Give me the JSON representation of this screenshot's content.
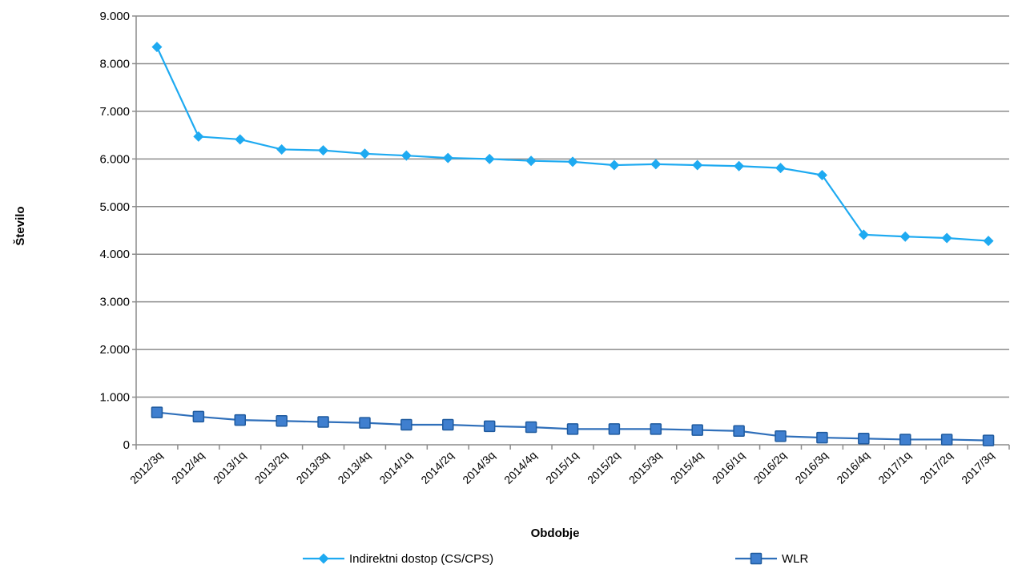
{
  "chart_data": {
    "type": "line",
    "xlabel": "Obdobje",
    "ylabel": "Število",
    "ylim": [
      0,
      9000
    ],
    "yticks": [
      0,
      1000,
      2000,
      3000,
      4000,
      5000,
      6000,
      7000,
      8000,
      9000
    ],
    "ytick_labels": [
      "0",
      "1.000",
      "2.000",
      "3.000",
      "4.000",
      "5.000",
      "6.000",
      "7.000",
      "8.000",
      "9.000"
    ],
    "grid": true,
    "legend_position": "bottom",
    "categories": [
      "2012/3q",
      "2012/4q",
      "2013/1q",
      "2013/2q",
      "2013/3q",
      "2013/4q",
      "2014/1q",
      "2014/2q",
      "2014/3q",
      "2014/4q",
      "2015/1q",
      "2015/2q",
      "2015/3q",
      "2015/4q",
      "2016/1q",
      "2016/2q",
      "2016/3q",
      "2016/4q",
      "2017/1q",
      "2017/2q",
      "2017/3q"
    ],
    "series": [
      {
        "name": "Indirektni dostop (CS/CPS)",
        "color": "#1eaaf1",
        "marker": "diamond",
        "values": [
          8350,
          6470,
          6410,
          6200,
          6180,
          6110,
          6070,
          6020,
          6000,
          5960,
          5940,
          5870,
          5890,
          5870,
          5850,
          5810,
          5660,
          4410,
          4370,
          4340,
          4280
        ]
      },
      {
        "name": "WLR",
        "color": "#2f6fba",
        "marker": "square",
        "values": [
          680,
          590,
          520,
          500,
          480,
          460,
          420,
          420,
          390,
          370,
          330,
          330,
          330,
          310,
          290,
          180,
          150,
          130,
          110,
          110,
          90
        ]
      }
    ]
  }
}
